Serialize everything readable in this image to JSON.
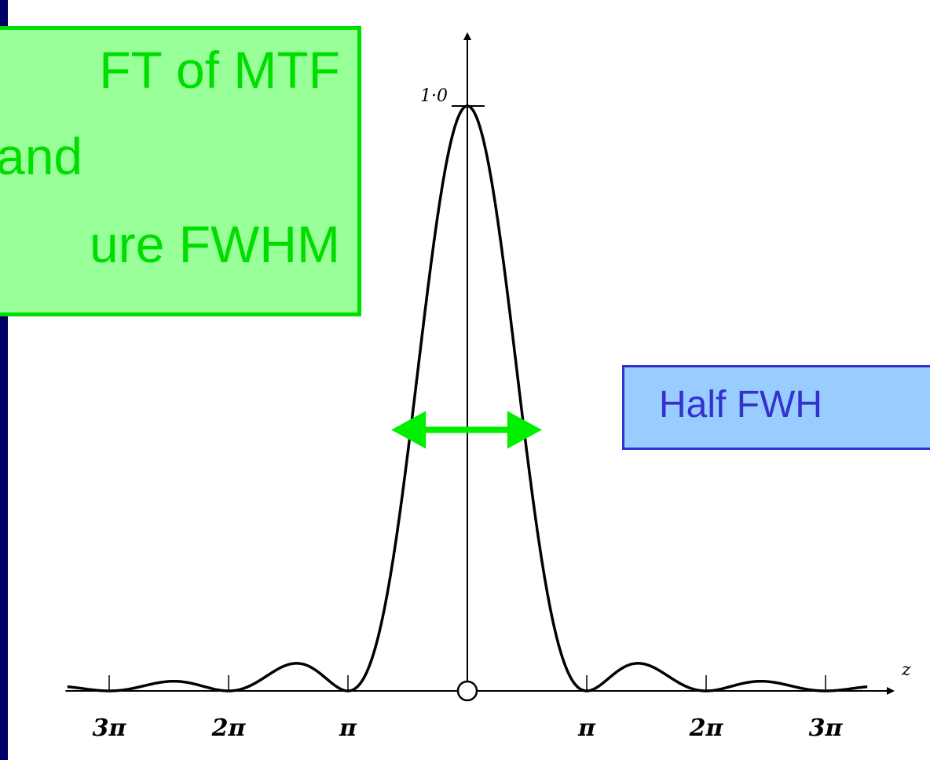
{
  "annotations": {
    "green_box": {
      "line1": "FT of MTF",
      "line2": "and",
      "line3": "ure FWHM"
    },
    "blue_box": {
      "text": "Half FWH"
    }
  },
  "colors": {
    "frame": "#000066",
    "green_text": "#00dd00",
    "green_fill": "#99ff99",
    "blue_text": "#3333cc",
    "blue_fill": "#99ccff",
    "arrow": "#00ee00"
  },
  "chart_data": {
    "type": "line",
    "function": "sinc squared",
    "x_axis_label": "z",
    "y_tick_label": "1·0",
    "xlim": [
      -3.3,
      3.5
    ],
    "ylim": [
      0,
      1.15
    ],
    "x_tick_positions": [
      -3,
      -2,
      -1,
      1,
      2,
      3
    ],
    "x_tick_labels": [
      "3π",
      "2π",
      "π",
      "π",
      "2π",
      "3π"
    ],
    "peak_value": 1.0,
    "half_width_marker": {
      "from": -0.44,
      "to": 0.44,
      "y": 0.5
    },
    "grid": false,
    "legend": "none"
  }
}
